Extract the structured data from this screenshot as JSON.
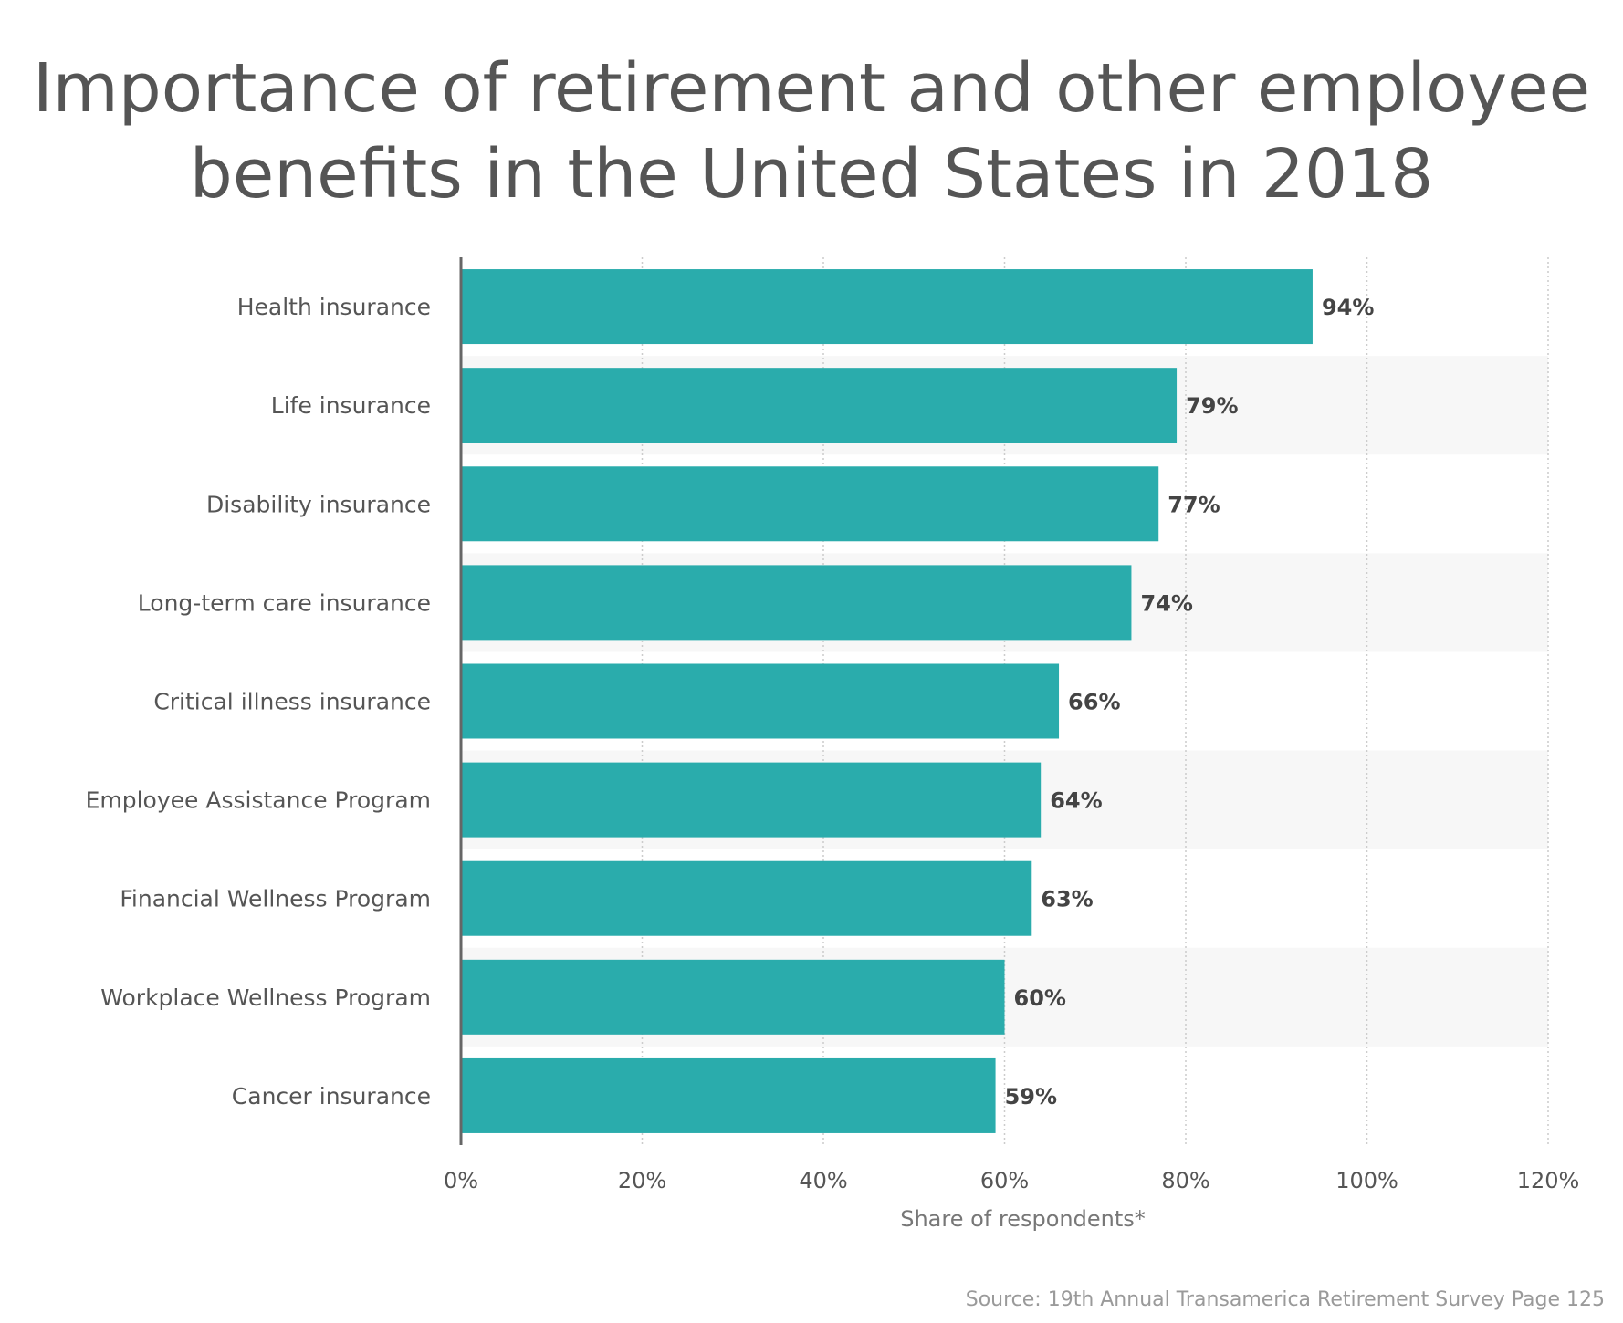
{
  "chart_data": {
    "type": "bar",
    "orientation": "horizontal",
    "title": "Importance of retirement and other employee benefits in the United States in 2018",
    "categories": [
      "Health insurance",
      "Life insurance",
      "Disability insurance",
      "Long-term care insurance",
      "Critical illness insurance",
      "Employee Assistance Program",
      "Financial Wellness Program",
      "Workplace Wellness Program",
      "Cancer insurance"
    ],
    "values": [
      94,
      79,
      77,
      74,
      66,
      64,
      63,
      60,
      59
    ],
    "value_labels": [
      "94%",
      "79%",
      "77%",
      "74%",
      "66%",
      "64%",
      "63%",
      "60%",
      "59%"
    ],
    "xlabel": "Share of respondents*",
    "ylabel": "",
    "xlim": [
      0,
      120
    ],
    "x_ticks": [
      0,
      20,
      40,
      60,
      80,
      100,
      120
    ],
    "x_tick_labels": [
      "0%",
      "20%",
      "40%",
      "60%",
      "80%",
      "100%",
      "120%"
    ],
    "grid": true,
    "legend": "none",
    "colors": {
      "bar": "#2aacac",
      "stripe": "#f7f7f7",
      "axis": "#666666",
      "grid": "#cccccc",
      "title": "#555555",
      "label": "#555555",
      "value_label": "#444444",
      "source": "#9a9a9a"
    },
    "source": "Source: 19th Annual Transamerica Retirement Survey Page 125"
  }
}
